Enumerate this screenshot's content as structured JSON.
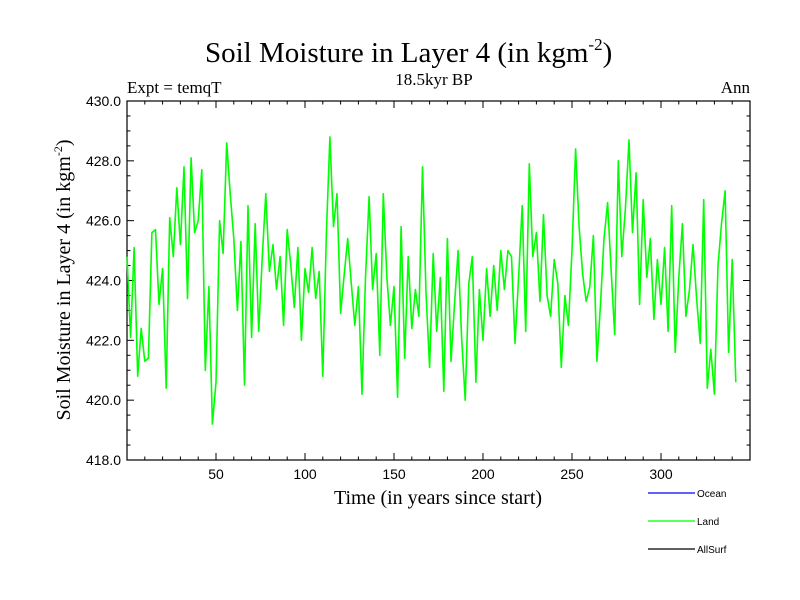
{
  "chart_data": {
    "type": "line",
    "title": "Soil Moisture in Layer 4 (in kgm",
    "title_sup": "-2",
    "title_close": ")",
    "subtitle_left": "Expt = temqT",
    "subtitle_center": "18.5kyr BP",
    "subtitle_right": "Ann",
    "xlabel": "Time (in years since start)",
    "ylabel": "Soil Moisture in Layer 4 (in kgm",
    "ylabel_sup": "-2",
    "ylabel_close": ")",
    "xlim": [
      0,
      350
    ],
    "ylim": [
      418.0,
      430.0
    ],
    "xticks": [
      50,
      100,
      150,
      200,
      250,
      300
    ],
    "yticks": [
      418.0,
      420.0,
      422.0,
      424.0,
      426.0,
      428.0,
      430.0
    ],
    "ytick_labels": [
      "418.0",
      "420.0",
      "422.0",
      "424.0",
      "426.0",
      "428.0",
      "430.0"
    ],
    "legend": [
      {
        "name": "Ocean",
        "color": "#0000ff"
      },
      {
        "name": "Land",
        "color": "#00ff00"
      },
      {
        "name": "AllSurf",
        "color": "#000000"
      }
    ],
    "series": [
      {
        "name": "Ocean",
        "color": "#0000ff",
        "x": [],
        "values": []
      },
      {
        "name": "AllSurf",
        "color": "#000000",
        "x": [],
        "values": []
      },
      {
        "name": "Land",
        "color": "#00ff00",
        "x_start": 0,
        "x_step": 2,
        "values": [
          424.8,
          422.1,
          425.1,
          420.8,
          422.4,
          421.3,
          421.4,
          425.6,
          425.7,
          423.2,
          424.4,
          420.4,
          426.1,
          424.8,
          427.1,
          425.2,
          427.8,
          423.4,
          428.1,
          425.6,
          426.0,
          427.7,
          421.0,
          423.8,
          419.2,
          420.6,
          426.0,
          424.9,
          428.6,
          426.9,
          425.4,
          423.0,
          425.3,
          420.5,
          426.5,
          422.1,
          425.9,
          422.3,
          424.8,
          426.9,
          424.3,
          425.2,
          423.7,
          424.8,
          422.5,
          425.7,
          424.5,
          423.1,
          425.1,
          422.0,
          424.4,
          423.6,
          425.1,
          423.4,
          424.3,
          420.8,
          425.6,
          428.8,
          425.8,
          426.9,
          422.9,
          424.2,
          425.4,
          423.9,
          422.5,
          423.8,
          420.2,
          424.1,
          426.8,
          423.7,
          424.9,
          421.5,
          426.9,
          424.1,
          422.5,
          423.8,
          420.1,
          425.8,
          421.4,
          424.8,
          422.4,
          423.7,
          422.8,
          427.8,
          423.6,
          421.1,
          424.9,
          422.3,
          424.1,
          420.3,
          425.4,
          421.3,
          423.2,
          425.0,
          422.1,
          420.0,
          423.9,
          424.8,
          420.6,
          423.7,
          422.0,
          424.4,
          422.8,
          424.5,
          423.0,
          425.0,
          423.7,
          425.0,
          424.8,
          421.9,
          424.1,
          426.5,
          422.3,
          427.9,
          424.8,
          425.6,
          423.3,
          426.2,
          423.5,
          422.8,
          424.7,
          423.9,
          421.1,
          423.5,
          422.5,
          425.0,
          428.4,
          425.8,
          424.2,
          423.3,
          423.8,
          425.5,
          421.3,
          423.2,
          425.4,
          426.6,
          424.3,
          422.2,
          428.0,
          424.8,
          426.4,
          428.7,
          425.6,
          427.6,
          423.2,
          426.7,
          424.1,
          425.4,
          422.7,
          424.7,
          423.2,
          425.1,
          422.3,
          426.5,
          421.6,
          424.1,
          425.9,
          422.8,
          423.7,
          425.2,
          423.4,
          421.9,
          426.7,
          420.4,
          421.7,
          420.2,
          424.5,
          425.9,
          427.0,
          421.6,
          424.7,
          420.6
        ]
      }
    ]
  }
}
